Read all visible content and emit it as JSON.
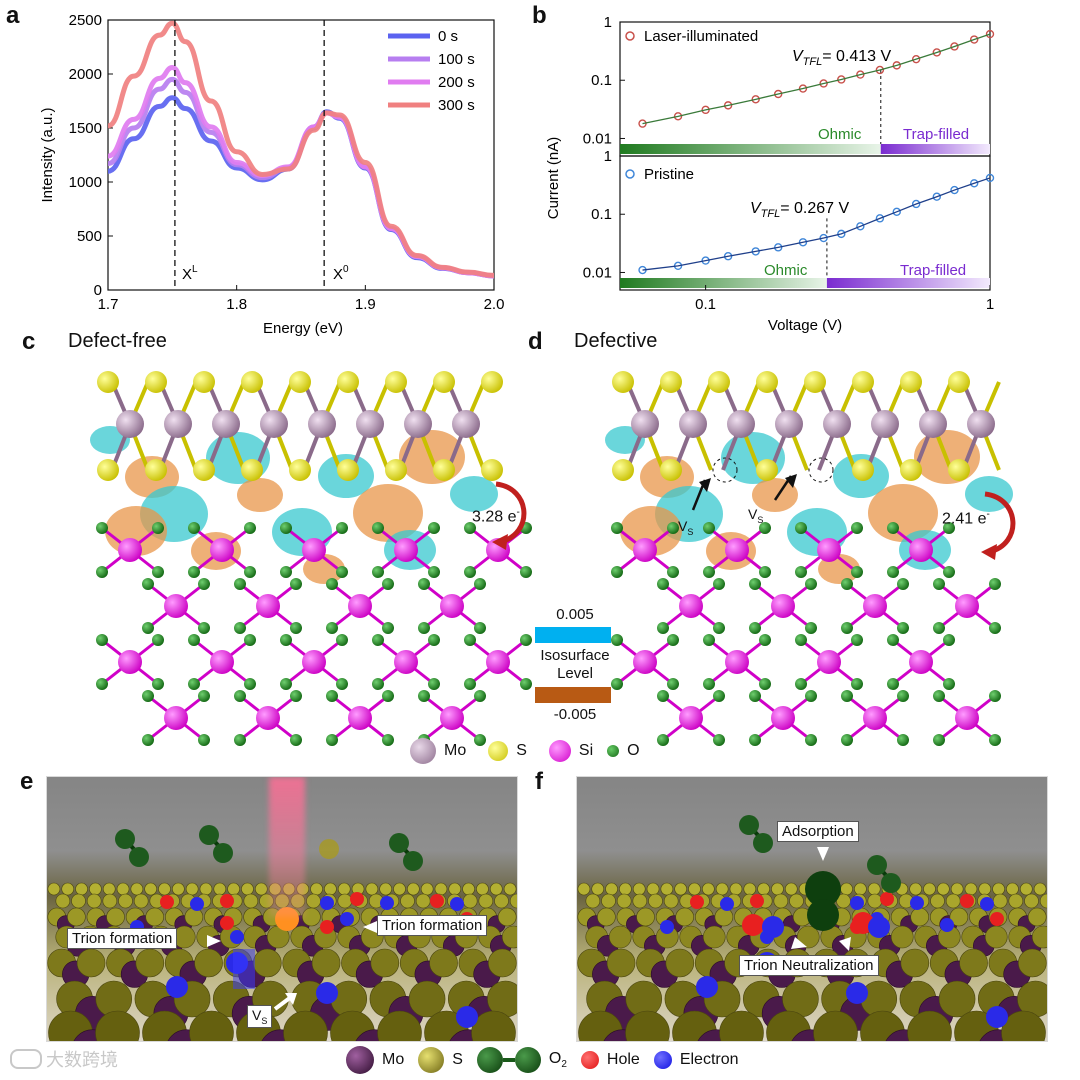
{
  "panels": {
    "a": "a",
    "b": "b",
    "c": "c",
    "d": "d",
    "e": "e",
    "f": "f"
  },
  "panel_a": {
    "ylabel": "Intensity (a.u.)",
    "xlabel": "Energy (eV)",
    "peak_labels": [
      "X",
      "L",
      "X",
      "0"
    ],
    "legend": [
      "0 s",
      "100 s",
      "200 s",
      "300 s"
    ],
    "colors": [
      "#5b63f0",
      "#b77ef0",
      "#e07cf0",
      "#f08080"
    ]
  },
  "panel_b": {
    "ylabel": "Current (nA)",
    "xlabel": "Voltage (V)",
    "top": {
      "legend": "Laser-illuminated",
      "vtfl_value": "= 0.413 V",
      "ohmic": "Ohmic",
      "trap": "Trap-filled"
    },
    "bottom": {
      "legend": "Pristine",
      "vtfl_value": "= 0.267 V",
      "ohmic": "Ohmic",
      "trap": "Trap-filled"
    },
    "vtfl_symbol": "V",
    "vtfl_sub": "TFL"
  },
  "panel_c": {
    "title": "Defect-free",
    "charge": "3.28 e",
    "sup": "-"
  },
  "panel_d": {
    "title": "Defective",
    "charge": "2.41 e",
    "sup": "-",
    "vs": "V",
    "vs_sub": "S"
  },
  "isosurface": {
    "pos": "0.005",
    "label1": "Isosurface",
    "label2": "Level",
    "neg": "-0.005"
  },
  "atom_legend": [
    "Mo",
    "S",
    "Si",
    "O"
  ],
  "panel_e": {
    "callout_left": "Trion formation",
    "callout_right": "Trion formation",
    "vs": "V",
    "vs_sub": "S"
  },
  "panel_f": {
    "callout_top": "Adsorption",
    "callout_bottom": "Trion Neutralization"
  },
  "bottom_legend": {
    "mo": "Mo",
    "s": "S",
    "o2": "O",
    "o2_sub": "2",
    "hole": "Hole",
    "electron": "Electron"
  },
  "watermark": "大数跨境",
  "chart_data": [
    {
      "type": "line",
      "title": "",
      "xlabel": "Energy (eV)",
      "ylabel": "Intensity (a.u.)",
      "xlim": [
        1.7,
        2.0
      ],
      "ylim": [
        0,
        2500
      ],
      "x_ticks": [
        "1.7",
        "1.8",
        "1.9",
        "2.0"
      ],
      "y_ticks": [
        "0",
        "500",
        "1000",
        "1500",
        "2000",
        "2500"
      ],
      "x": [
        1.7,
        1.72,
        1.74,
        1.75,
        1.76,
        1.78,
        1.8,
        1.82,
        1.84,
        1.86,
        1.87,
        1.88,
        1.9,
        1.92,
        1.94,
        1.96,
        1.98,
        2.0
      ],
      "series": [
        {
          "name": "0 s",
          "values": [
            1100,
            1400,
            1700,
            1780,
            1680,
            1380,
            1130,
            1020,
            1120,
            1500,
            1650,
            1590,
            1130,
            560,
            300,
            200,
            160,
            130
          ]
        },
        {
          "name": "100 s",
          "values": [
            1170,
            1500,
            1860,
            1950,
            1830,
            1460,
            1160,
            1040,
            1130,
            1510,
            1640,
            1600,
            1140,
            570,
            310,
            205,
            160,
            130
          ]
        },
        {
          "name": "200 s",
          "values": [
            1240,
            1580,
            1960,
            2060,
            1920,
            1510,
            1180,
            1060,
            1140,
            1510,
            1640,
            1600,
            1140,
            570,
            310,
            205,
            160,
            130
          ]
        },
        {
          "name": "300 s",
          "values": [
            1520,
            1980,
            2360,
            2470,
            2300,
            1750,
            1280,
            1070,
            1120,
            1480,
            1640,
            1620,
            1180,
            590,
            320,
            210,
            165,
            135
          ]
        }
      ],
      "legend_position": "top-right",
      "vlines": [
        1.752,
        1.868
      ]
    },
    {
      "type": "scatter",
      "title": "",
      "xlabel": "Voltage (V)",
      "ylabel": "Current (nA)",
      "xscale": "log",
      "yscale": "log",
      "xlim": [
        0.05,
        1.0
      ],
      "x_ticks": [
        "0.1",
        "1"
      ],
      "subplots": [
        {
          "name": "Laser-illuminated",
          "ylim": [
            0.005,
            1
          ],
          "y_ticks": [
            "0.01",
            "0.1",
            "1"
          ],
          "x": [
            0.06,
            0.08,
            0.1,
            0.12,
            0.15,
            0.18,
            0.22,
            0.26,
            0.3,
            0.35,
            0.41,
            0.47,
            0.55,
            0.65,
            0.75,
            0.88,
            1.0
          ],
          "values": [
            0.018,
            0.024,
            0.031,
            0.037,
            0.047,
            0.058,
            0.072,
            0.088,
            0.103,
            0.125,
            0.15,
            0.18,
            0.23,
            0.3,
            0.38,
            0.5,
            0.62
          ],
          "vtfl": 0.413
        },
        {
          "name": "Pristine",
          "ylim": [
            0.005,
            1
          ],
          "y_ticks": [
            "0.01",
            "0.1",
            "1"
          ],
          "x": [
            0.06,
            0.08,
            0.1,
            0.12,
            0.15,
            0.18,
            0.22,
            0.26,
            0.3,
            0.35,
            0.41,
            0.47,
            0.55,
            0.65,
            0.75,
            0.88,
            1.0
          ],
          "values": [
            0.011,
            0.013,
            0.016,
            0.019,
            0.023,
            0.027,
            0.033,
            0.039,
            0.046,
            0.062,
            0.085,
            0.11,
            0.15,
            0.2,
            0.26,
            0.34,
            0.42
          ],
          "vtfl": 0.267
        }
      ]
    }
  ]
}
